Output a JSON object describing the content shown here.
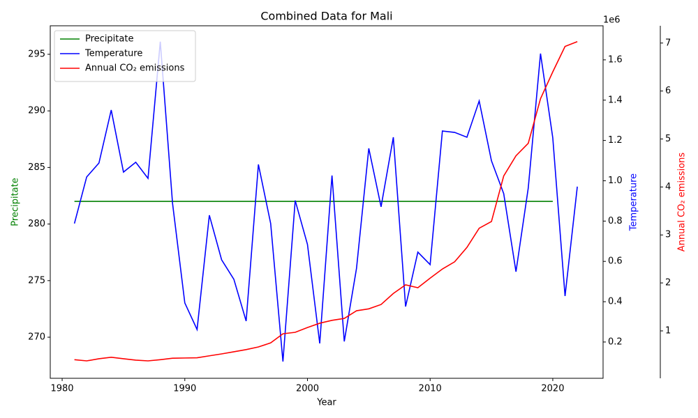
{
  "chart_data": {
    "type": "line",
    "title": "Combined Data for Mali",
    "xlabel": "Year",
    "ylabel": "Precipitate",
    "y2label": "Temperature",
    "y3label": "Annual CO₂ emissions",
    "y2_offset": "1e6",
    "legend": "upper left",
    "x": [
      1981,
      1982,
      1983,
      1984,
      1985,
      1986,
      1987,
      1988,
      1989,
      1990,
      1991,
      1992,
      1993,
      1994,
      1995,
      1996,
      1997,
      1998,
      1999,
      2000,
      2001,
      2002,
      2003,
      2004,
      2005,
      2006,
      2007,
      2008,
      2009,
      2010,
      2011,
      2012,
      2013,
      2014,
      2015,
      2016,
      2017,
      2018,
      2019,
      2020,
      2021,
      2022
    ],
    "xlim": [
      1979.03,
      2024.1
    ],
    "xticks": [
      1980,
      1990,
      2000,
      2010,
      2020
    ],
    "ylim": [
      266.37,
      297.52
    ],
    "yticks": [
      270,
      275,
      280,
      285,
      290,
      295
    ],
    "y2lim": [
      20000,
      1769000
    ],
    "y2ticks": [
      {
        "value": 200000,
        "label": "0.2"
      },
      {
        "value": 400000,
        "label": "0.4"
      },
      {
        "value": 600000,
        "label": "0.6"
      },
      {
        "value": 800000,
        "label": "0.8"
      },
      {
        "value": 1000000,
        "label": "1.0"
      },
      {
        "value": 1200000,
        "label": "1.2"
      },
      {
        "value": 1400000,
        "label": "1.4"
      },
      {
        "value": 1600000,
        "label": "1.6"
      }
    ],
    "y3lim": [
      0.012,
      7.36
    ],
    "y3ticks": [
      1,
      2,
      3,
      4,
      5,
      6,
      7
    ],
    "series": [
      {
        "name": "Precipitate",
        "color": "#008000",
        "axis": "y",
        "values": [
          282,
          282,
          282,
          282,
          282,
          282,
          282,
          282,
          282,
          282,
          282,
          282,
          282,
          282,
          282,
          282,
          282,
          282,
          282,
          282,
          282,
          282,
          282,
          282,
          282,
          282,
          282,
          282,
          282,
          282,
          282,
          282,
          282,
          282,
          282,
          282,
          282,
          282,
          282,
          282,
          null,
          null
        ]
      },
      {
        "name": "Temperature",
        "color": "#0000ff",
        "axis": "y2",
        "values": [
          788000,
          1019000,
          1088000,
          1351000,
          1043000,
          1092000,
          1012000,
          1690000,
          888000,
          394000,
          262000,
          829000,
          608000,
          511000,
          304000,
          1081000,
          788000,
          103000,
          902000,
          684000,
          193000,
          1026000,
          203000,
          566000,
          1161000,
          871000,
          1216000,
          376000,
          646000,
          584000,
          1247000,
          1240000,
          1216000,
          1396000,
          1099000,
          936000,
          549000,
          964000,
          1631000,
          1213000,
          428000,
          971000
        ]
      },
      {
        "name": "Annual CO₂ emissions",
        "color": "#ff0000",
        "axis": "y3",
        "values": [
          0.4,
          0.375,
          0.42,
          0.45,
          0.42,
          0.39,
          0.375,
          0.4,
          0.43,
          0.435,
          0.44,
          0.48,
          0.52,
          0.565,
          0.61,
          0.665,
          0.75,
          0.94,
          0.97,
          1.07,
          1.16,
          1.22,
          1.26,
          1.42,
          1.46,
          1.55,
          1.78,
          1.96,
          1.9,
          2.1,
          2.29,
          2.44,
          2.74,
          3.14,
          3.28,
          4.23,
          4.65,
          4.91,
          5.84,
          6.4,
          6.93,
          7.03
        ]
      }
    ]
  }
}
